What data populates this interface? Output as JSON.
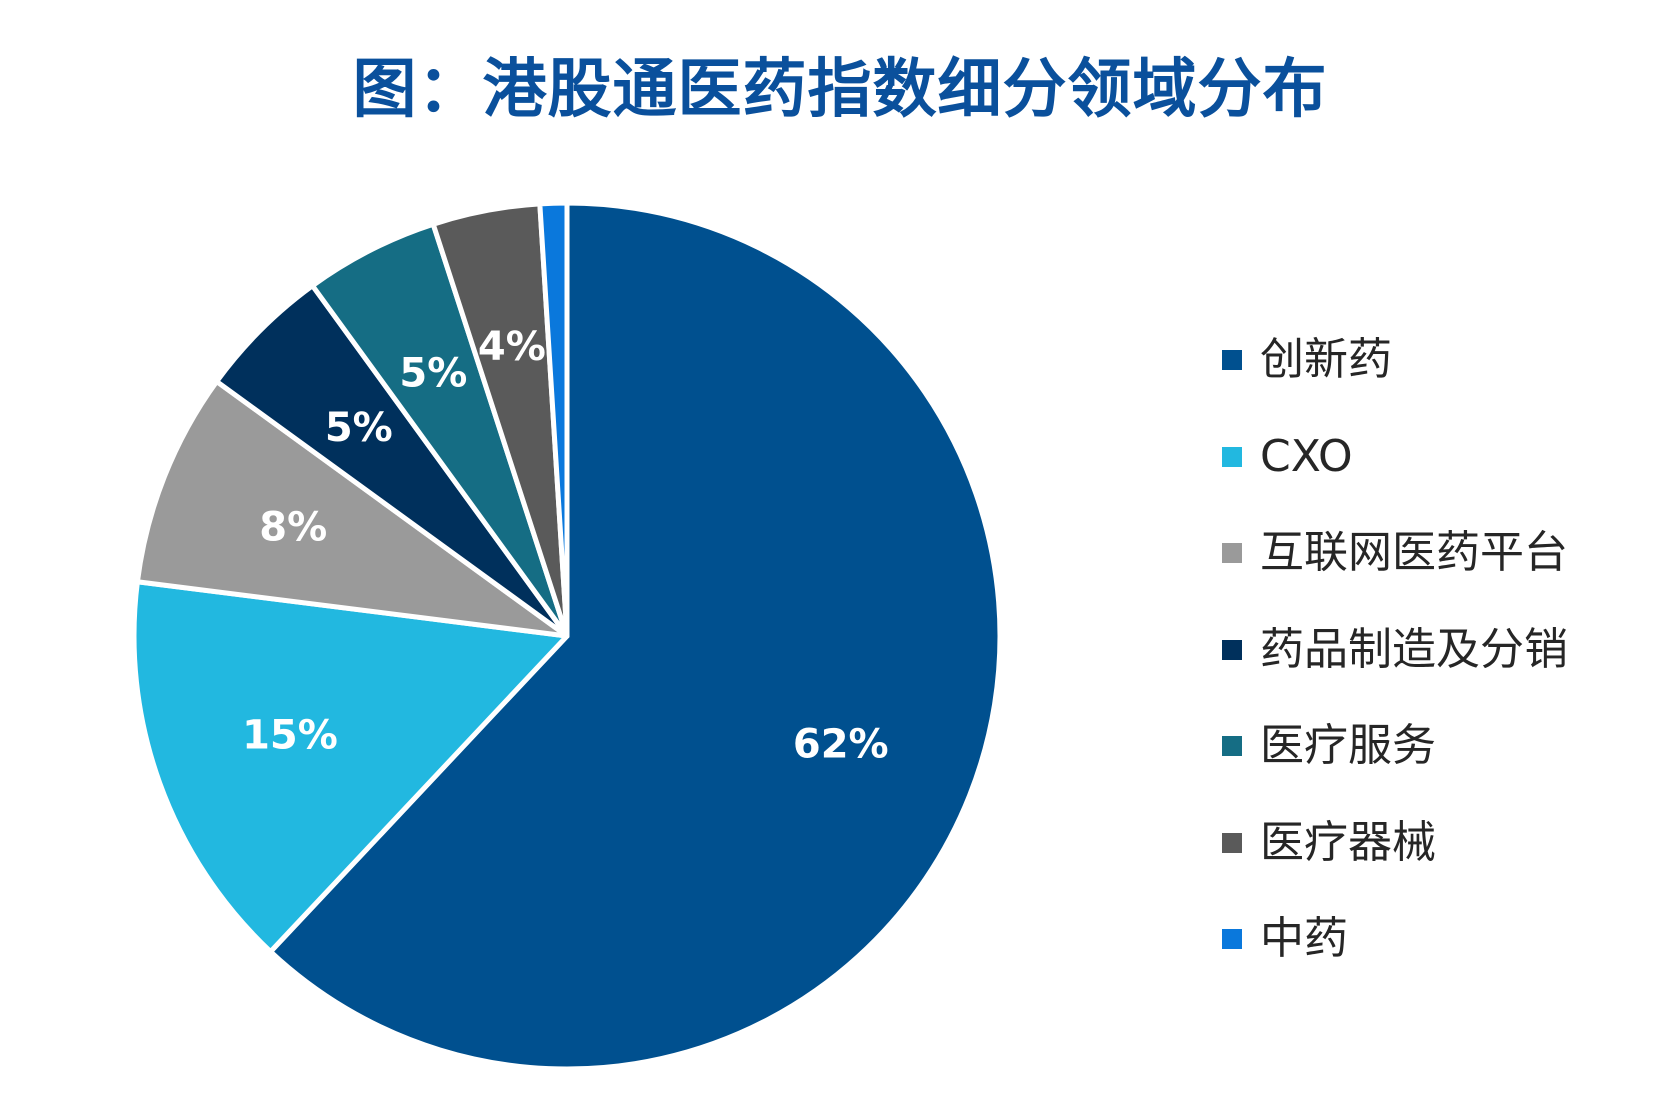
{
  "chart_data": {
    "type": "pie",
    "title": "图：港股通医药指数细分领域分布",
    "start_angle_deg": 0,
    "direction": "clockwise",
    "legend_position": "right",
    "slices": [
      {
        "name": "创新药",
        "value": 62,
        "label": "62%",
        "color": "#00508f"
      },
      {
        "name": "CXO",
        "value": 15,
        "label": "15%",
        "color": "#22b8e0"
      },
      {
        "name": "互联网医药平台",
        "value": 8,
        "label": "8%",
        "color": "#9a9a9a"
      },
      {
        "name": "药品制造及分销",
        "value": 5,
        "label": "5%",
        "color": "#00305c"
      },
      {
        "name": "医疗服务",
        "value": 5,
        "label": "5%",
        "color": "#156d84"
      },
      {
        "name": "医疗器械",
        "value": 4,
        "label": "4%",
        "color": "#5a5a5a"
      },
      {
        "name": "中药",
        "value": 1,
        "label": "",
        "color": "#0a78dc"
      }
    ]
  }
}
